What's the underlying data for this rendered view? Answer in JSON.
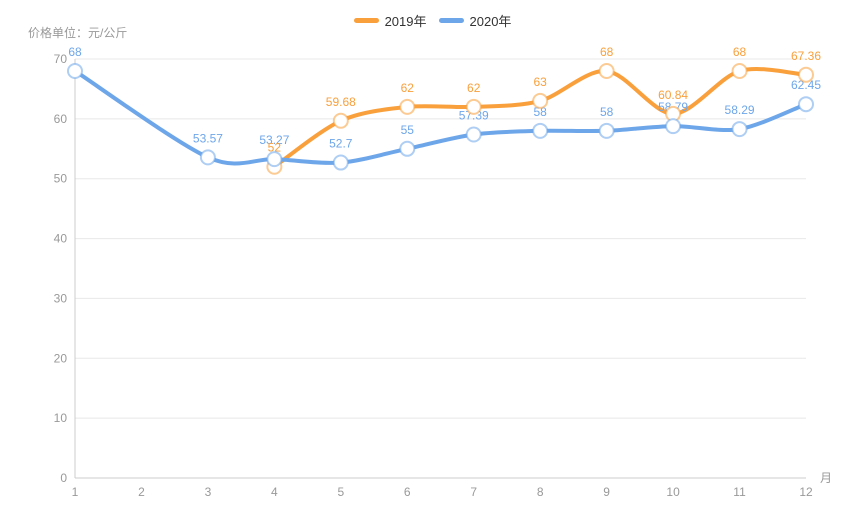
{
  "colors": {
    "background": "#ffffff",
    "grid_line": "#e8e8e8",
    "axis_line": "#cccccc",
    "axis_label": "#999999",
    "legend_text": "#333333",
    "marker_fill": "#ffffff"
  },
  "legend": {
    "items": [
      {
        "id": "2019",
        "label": "2019年",
        "color": "#f9a03c"
      },
      {
        "id": "2020",
        "label": "2020年",
        "color": "#6ea6ea"
      }
    ]
  },
  "chart_data": {
    "type": "line",
    "title": "",
    "xlabel": "月",
    "ylabel": "价格单位：元/公斤",
    "x_categories": [
      1,
      2,
      3,
      4,
      5,
      6,
      7,
      8,
      9,
      10,
      11,
      12
    ],
    "ylim": [
      0,
      70
    ],
    "yticks": [
      0,
      10,
      20,
      30,
      40,
      50,
      60,
      70
    ],
    "grid": true,
    "smooth": true,
    "legend_position": "top-center",
    "series": [
      {
        "name": "2019年",
        "id": "2019",
        "color": "#f9a03c",
        "points": [
          {
            "x": 4,
            "y": 52,
            "label": "52"
          },
          {
            "x": 5,
            "y": 59.68,
            "label": "59.68"
          },
          {
            "x": 6,
            "y": 62,
            "label": "62"
          },
          {
            "x": 7,
            "y": 62,
            "label": "62"
          },
          {
            "x": 8,
            "y": 63,
            "label": "63"
          },
          {
            "x": 9,
            "y": 68,
            "label": "68"
          },
          {
            "x": 10,
            "y": 60.84,
            "label": "60.84"
          },
          {
            "x": 11,
            "y": 68,
            "label": "68"
          },
          {
            "x": 12,
            "y": 67.36,
            "label": "67.36"
          }
        ]
      },
      {
        "name": "2020年",
        "id": "2020",
        "color": "#6ea6ea",
        "points": [
          {
            "x": 1,
            "y": 68,
            "label": "68"
          },
          {
            "x": 3,
            "y": 53.57,
            "label": "53.57"
          },
          {
            "x": 4,
            "y": 53.27,
            "label": "53.27"
          },
          {
            "x": 5,
            "y": 52.7,
            "label": "52.7"
          },
          {
            "x": 6,
            "y": 55,
            "label": "55"
          },
          {
            "x": 7,
            "y": 57.39,
            "label": "57.39"
          },
          {
            "x": 8,
            "y": 58,
            "label": "58"
          },
          {
            "x": 9,
            "y": 58,
            "label": "58"
          },
          {
            "x": 10,
            "y": 58.79,
            "label": "58.79"
          },
          {
            "x": 11,
            "y": 58.29,
            "label": "58.29"
          },
          {
            "x": 12,
            "y": 62.45,
            "label": "62.45"
          }
        ]
      }
    ]
  }
}
